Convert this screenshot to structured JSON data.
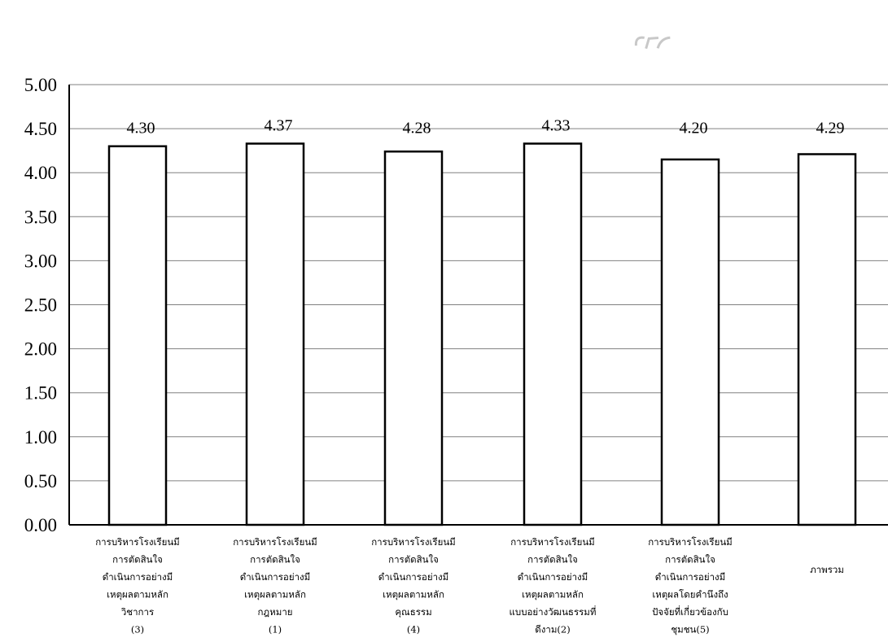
{
  "chart_data": {
    "type": "bar",
    "categories": [
      [
        "การบริหารโรงเรียนมี",
        "การตัดสินใจ",
        "ดำเนินการอย่างมี",
        "เหตุผลตามหลัก",
        "วิชาการ",
        "(3)"
      ],
      [
        "การบริหารโรงเรียนมี",
        "การตัดสินใจ",
        "ดำเนินการอย่างมี",
        "เหตุผลตามหลัก",
        "กฎหมาย",
        "(1)"
      ],
      [
        "การบริหารโรงเรียนมี",
        "การตัดสินใจ",
        "ดำเนินการอย่างมี",
        "เหตุผลตามหลัก",
        "คุณธรรม",
        "(4)"
      ],
      [
        "การบริหารโรงเรียนมี",
        "การตัดสินใจ",
        "ดำเนินการอย่างมี",
        "เหตุผลตามหลัก",
        "แบบอย่างวัฒนธรรมที่",
        "ดีงาม(2)"
      ],
      [
        "การบริหารโรงเรียนมี",
        "การตัดสินใจ",
        "ดำเนินการอย่างมี",
        "เหตุผลโดยคำนึงถึง",
        "ปัจจัยที่เกี่ยวข้องกับ",
        "ชุมชน(5)"
      ],
      [
        "ภาพรวม"
      ]
    ],
    "values": [
      4.3,
      4.37,
      4.28,
      4.33,
      4.2,
      4.29
    ],
    "drawn_heights": [
      4.3,
      4.33,
      4.24,
      4.33,
      4.15,
      4.21
    ],
    "data_labels": [
      "4.30",
      "4.37",
      "4.28",
      "4.33",
      "4.20",
      "4.29"
    ],
    "yticks": [
      "0.00",
      "0.50",
      "1.00",
      "1.50",
      "2.00",
      "2.50",
      "3.00",
      "3.50",
      "4.00",
      "4.50",
      "5.00"
    ],
    "ylim": [
      0,
      5
    ],
    "ystep": 0.5,
    "grid": true,
    "bar_fill": "#ffffff",
    "bar_stroke": "#000000",
    "grid_color": "#808080",
    "axis_color": "#000000",
    "title": "",
    "xlabel": "",
    "ylabel": ""
  }
}
